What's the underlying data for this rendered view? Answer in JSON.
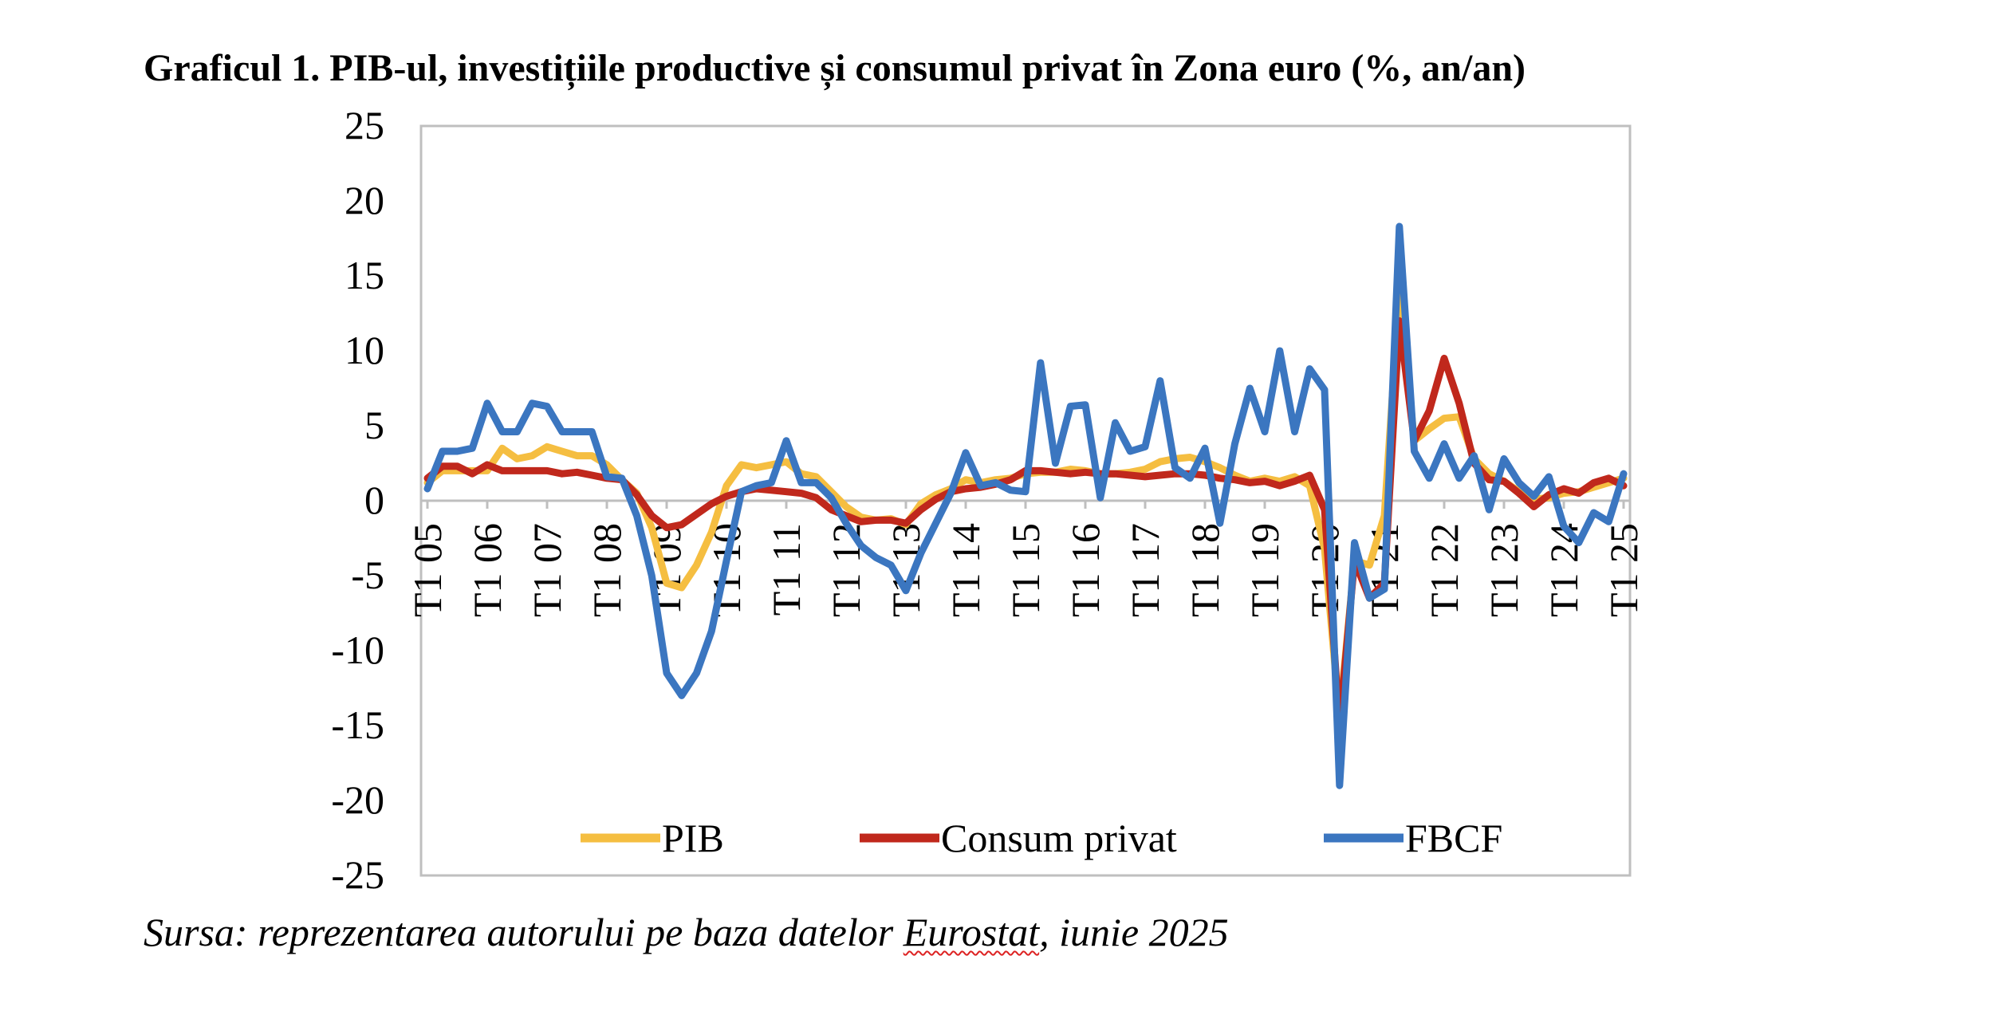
{
  "figure": {
    "title": "Graficul 1. PIB-ul, investițiile productive și consumul privat în Zona euro (%, an/an)",
    "source_prefix": "Sursa: reprezentarea autorului pe baza datelor ",
    "source_underlined": "Eurostat",
    "source_suffix": ", iunie 2025"
  },
  "chart_data": {
    "type": "line",
    "title": "Graficul 1. PIB-ul, investițiile productive și consumul privat în Zona euro (%, an/an)",
    "xlabel": "",
    "ylabel": "",
    "ylim": [
      -25,
      25
    ],
    "yticks": [
      25,
      20,
      15,
      10,
      5,
      0,
      -5,
      -10,
      -15,
      -20,
      -25
    ],
    "grid": false,
    "legend_position": "bottom",
    "x": [
      "T1 05",
      "T2 05",
      "T3 05",
      "T4 05",
      "T1 06",
      "T2 06",
      "T3 06",
      "T4 06",
      "T1 07",
      "T2 07",
      "T3 07",
      "T4 07",
      "T1 08",
      "T2 08",
      "T3 08",
      "T4 08",
      "T1 09",
      "T2 09",
      "T3 09",
      "T4 09",
      "T1 10",
      "T2 10",
      "T3 10",
      "T4 10",
      "T1 11",
      "T2 11",
      "T3 11",
      "T4 11",
      "T1 12",
      "T2 12",
      "T3 12",
      "T4 12",
      "T1 13",
      "T2 13",
      "T3 13",
      "T4 13",
      "T1 14",
      "T2 14",
      "T3 14",
      "T4 14",
      "T1 15",
      "T2 15",
      "T3 15",
      "T4 15",
      "T1 16",
      "T2 16",
      "T3 16",
      "T4 16",
      "T1 17",
      "T2 17",
      "T3 17",
      "T4 17",
      "T1 18",
      "T2 18",
      "T3 18",
      "T4 18",
      "T1 19",
      "T2 19",
      "T3 19",
      "T4 19",
      "T1 20",
      "T2 20",
      "T3 20",
      "T4 20",
      "T1 21",
      "T2 21",
      "T3 21",
      "T4 21",
      "T1 22",
      "T2 22",
      "T3 22",
      "T4 22",
      "T1 23",
      "T2 23",
      "T3 23",
      "T4 23",
      "T1 24",
      "T2 24",
      "T3 24",
      "T4 24",
      "T1 25"
    ],
    "x_tick_labels": [
      "T1 05",
      "T1 06",
      "T1 07",
      "T1 08",
      "T1 09",
      "T1 10",
      "T1 11",
      "T1 12",
      "T1 13",
      "T1 14",
      "T1 15",
      "T1 16",
      "T1 17",
      "T1 18",
      "T1 19",
      "T1 20",
      "T1 21",
      "T1 22",
      "T1 23",
      "T1 24",
      "T1 25"
    ],
    "series": [
      {
        "name": "PIB",
        "color": "#F5BE41",
        "values": [
          1.2,
          2.0,
          2.0,
          2.0,
          2.0,
          3.5,
          2.8,
          3.0,
          3.6,
          3.3,
          3.0,
          3.0,
          2.4,
          1.4,
          0.5,
          -1.8,
          -5.5,
          -5.8,
          -4.3,
          -2.1,
          1.0,
          2.4,
          2.2,
          2.4,
          2.6,
          1.8,
          1.6,
          0.6,
          -0.4,
          -1.1,
          -1.3,
          -1.2,
          -1.6,
          -0.2,
          0.4,
          0.8,
          1.4,
          1.2,
          1.4,
          1.5,
          1.8,
          1.9,
          1.9,
          2.1,
          2.0,
          1.8,
          1.8,
          1.9,
          2.1,
          2.6,
          2.8,
          2.9,
          2.6,
          2.2,
          1.7,
          1.3,
          1.5,
          1.3,
          1.6,
          1.0,
          -3.2,
          -14.5,
          -4.0,
          -4.3,
          -1.0,
          14.0,
          4.0,
          4.8,
          5.5,
          5.6,
          2.8,
          1.8,
          1.3,
          0.6,
          0.1,
          0.2,
          0.5,
          0.6,
          0.9,
          1.2,
          1.5
        ]
      },
      {
        "name": "Consum privat",
        "color": "#C0281C",
        "values": [
          1.5,
          2.3,
          2.3,
          1.8,
          2.4,
          2.0,
          2.0,
          2.0,
          2.0,
          1.8,
          1.9,
          1.7,
          1.5,
          1.4,
          0.4,
          -1.0,
          -1.8,
          -1.6,
          -0.9,
          -0.2,
          0.3,
          0.6,
          0.8,
          0.7,
          0.6,
          0.5,
          0.2,
          -0.6,
          -1.0,
          -1.4,
          -1.3,
          -1.3,
          -1.5,
          -0.6,
          0.1,
          0.6,
          0.8,
          0.9,
          1.1,
          1.4,
          2.0,
          2.0,
          1.9,
          1.8,
          1.9,
          1.8,
          1.8,
          1.7,
          1.6,
          1.7,
          1.8,
          1.8,
          1.7,
          1.5,
          1.4,
          1.2,
          1.3,
          1.0,
          1.3,
          1.7,
          -0.6,
          -15.0,
          -4.0,
          -6.5,
          -5.5,
          12.0,
          4.0,
          6.0,
          9.5,
          6.5,
          2.5,
          1.4,
          1.3,
          0.5,
          -0.4,
          0.4,
          0.8,
          0.5,
          1.2,
          1.5,
          1.0
        ]
      },
      {
        "name": "FBCF",
        "color": "#3B76C0",
        "values": [
          0.8,
          3.3,
          3.3,
          3.5,
          6.5,
          4.6,
          4.6,
          6.5,
          6.3,
          4.6,
          4.6,
          4.6,
          1.6,
          1.5,
          -1.0,
          -5.0,
          -11.5,
          -13.0,
          -11.5,
          -8.7,
          -4.0,
          0.6,
          1.0,
          1.2,
          4.0,
          1.2,
          1.2,
          0.2,
          -1.5,
          -3.0,
          -3.8,
          -4.3,
          -6.0,
          -3.5,
          -1.5,
          0.5,
          3.2,
          1.0,
          1.2,
          0.7,
          0.6,
          9.2,
          2.5,
          6.3,
          6.4,
          0.2,
          5.2,
          3.3,
          3.6,
          8.0,
          2.2,
          1.5,
          3.5,
          -1.5,
          3.8,
          7.5,
          4.6,
          10.0,
          4.6,
          8.8,
          7.4,
          -19.0,
          -2.8,
          -6.5,
          -5.9,
          18.3,
          3.3,
          1.5,
          3.8,
          1.5,
          3.0,
          -0.6,
          2.8,
          1.2,
          0.3,
          1.6,
          -1.7,
          -2.8,
          -0.8,
          -1.4,
          1.8
        ]
      }
    ]
  }
}
